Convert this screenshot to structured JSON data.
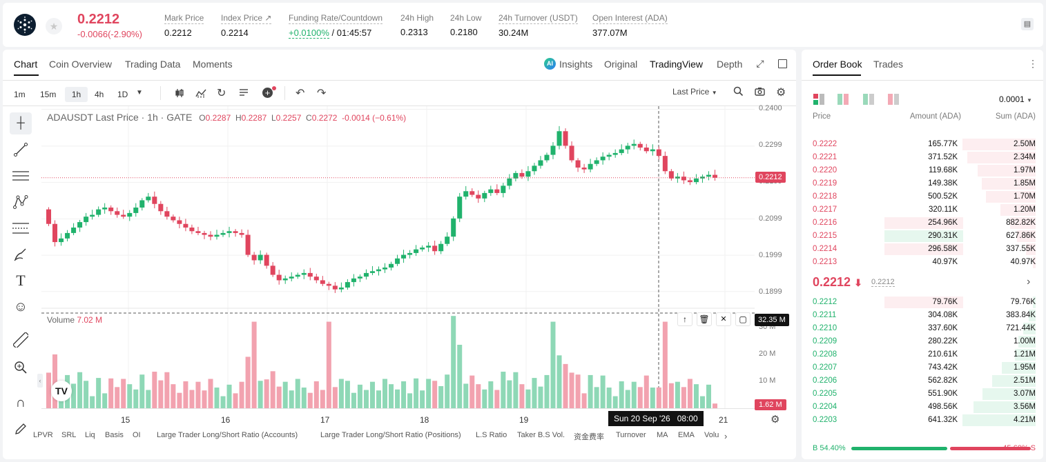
{
  "ticker": {
    "last_price": "0.2212",
    "change": "-0.0066(-2.90%)",
    "stats": [
      {
        "label": "Mark Price",
        "value": "0.2212"
      },
      {
        "label": "Index Price ↗",
        "value": "0.2214"
      },
      {
        "label": "Funding Rate/Countdown",
        "value_green": "+0.0100%",
        "value": " / 01:45:57"
      },
      {
        "label": "24h High",
        "value": "0.2313"
      },
      {
        "label": "24h Low",
        "value": "0.2180"
      },
      {
        "label": "24h Turnover (USDT)",
        "value": "30.24M"
      },
      {
        "label": "Open Interest (ADA)",
        "value": "377.07M"
      }
    ]
  },
  "chart_tabs": [
    "Chart",
    "Coin Overview",
    "Trading Data",
    "Moments"
  ],
  "view_tabs": {
    "insights": "Insights",
    "original": "Original",
    "tradingview": "TradingView",
    "depth": "Depth"
  },
  "intervals": [
    "1m",
    "15m",
    "1h",
    "4h",
    "1D"
  ],
  "selected_interval": "1h",
  "last_price_select": "Last Price",
  "legend": {
    "symbol": "ADAUSDT Last Price · 1h · GATE",
    "o_label": "O",
    "o": "0.2287",
    "h_label": "H",
    "h": "0.2287",
    "l_label": "L",
    "l": "0.2257",
    "c_label": "C",
    "c": "0.2272",
    "chg": "-0.0014 (−0.61%)"
  },
  "volume_legend": {
    "label": "Volume",
    "value": "7.02 M"
  },
  "price_axis": [
    "0.2400",
    "0.2299",
    "0.2199",
    "0.2099",
    "0.1999",
    "0.1899"
  ],
  "current_price_tag": "0.2212",
  "volume_axis": [
    "30 M",
    "20 M",
    "10 M"
  ],
  "volume_crosshair_tag": "32.35 M",
  "volume_last_tag": "1.62 M",
  "time_axis": [
    "15",
    "16",
    "17",
    "18",
    "19",
    "21"
  ],
  "crosshair_time": "Sun 20 Sep '26   08:00",
  "indicators": [
    "LPVR",
    "SRL",
    "Liq",
    "Basis",
    "OI",
    "Large Trader Long/Short Ratio (Accounts)",
    "Large Trader Long/Short Ratio (Positions)",
    "L.S Ratio",
    "Taker B.S Vol.",
    "资金费率",
    "Turnover",
    "MA",
    "EMA",
    "Volu"
  ],
  "chart_data": {
    "type": "candlestick",
    "title": "ADAUSDT Last Price · 1h · GATE",
    "ylim": [
      0.1855,
      0.2405
    ],
    "volume_ylim": [
      0,
      33
    ],
    "x_ticks": [
      "15",
      "16",
      "17",
      "18",
      "19",
      "21"
    ],
    "candle_closes_approx": [
      0.2085,
      0.2035,
      0.2045,
      0.206,
      0.2075,
      0.209,
      0.2105,
      0.211,
      0.2125,
      0.213,
      0.212,
      0.211,
      0.2105,
      0.2115,
      0.213,
      0.215,
      0.216,
      0.214,
      0.212,
      0.2105,
      0.2095,
      0.2085,
      0.2075,
      0.2065,
      0.206,
      0.2055,
      0.205,
      0.2055,
      0.206,
      0.2065,
      0.206,
      0.2055,
      0.2,
      0.1985,
      0.2,
      0.197,
      0.1945,
      0.193,
      0.1935,
      0.194,
      0.1945,
      0.195,
      0.194,
      0.193,
      0.192,
      0.1915,
      0.1905,
      0.191,
      0.1925,
      0.1935,
      0.194,
      0.195,
      0.1955,
      0.196,
      0.1965,
      0.1975,
      0.199,
      0.2,
      0.2005,
      0.2015,
      0.202,
      0.2025,
      0.201,
      0.203,
      0.205,
      0.21,
      0.216,
      0.2175,
      0.2165,
      0.2155,
      0.217,
      0.218,
      0.217,
      0.219,
      0.221,
      0.2225,
      0.2215,
      0.223,
      0.2245,
      0.226,
      0.2275,
      0.23,
      0.234,
      0.23,
      0.226,
      0.224,
      0.2235,
      0.225,
      0.226,
      0.227,
      0.2275,
      0.228,
      0.229,
      0.23,
      0.2305,
      0.2295,
      0.2285,
      0.229,
      0.2272,
      0.223,
      0.221,
      0.2215,
      0.2205,
      0.22,
      0.221,
      0.2215,
      0.222,
      0.2212
    ]
  },
  "order_book": {
    "tabs": [
      "Order Book",
      "Trades"
    ],
    "precision": "0.0001",
    "headers": {
      "price": "Price",
      "amount": "Amount (ADA)",
      "sum": "Sum (ADA)"
    },
    "asks": [
      {
        "price": "0.2222",
        "amount": "165.77K",
        "sum": "2.50M",
        "depth": 1.0,
        "hl": 0
      },
      {
        "price": "0.2221",
        "amount": "371.52K",
        "sum": "2.34M",
        "depth": 0.936,
        "hl": 0
      },
      {
        "price": "0.2220",
        "amount": "119.68K",
        "sum": "1.97M",
        "depth": 0.788,
        "hl": 0
      },
      {
        "price": "0.2219",
        "amount": "149.38K",
        "sum": "1.85M",
        "depth": 0.74,
        "hl": 0
      },
      {
        "price": "0.2218",
        "amount": "500.52K",
        "sum": "1.70M",
        "depth": 0.68,
        "hl": 0
      },
      {
        "price": "0.2217",
        "amount": "320.11K",
        "sum": "1.20M",
        "depth": 0.48,
        "hl": 0
      },
      {
        "price": "0.2216",
        "amount": "254.96K",
        "sum": "882.82K",
        "depth": 0.353,
        "hl": 1
      },
      {
        "price": "0.2215",
        "amount": "290.31K",
        "sum": "627.86K",
        "depth": 0.251,
        "hl": 2
      },
      {
        "price": "0.2214",
        "amount": "296.58K",
        "sum": "337.55K",
        "depth": 0.135,
        "hl": 1
      },
      {
        "price": "0.2213",
        "amount": "40.97K",
        "sum": "40.97K",
        "depth": 0.016,
        "hl": 0
      }
    ],
    "mid_price": "0.2212",
    "mid_mark": "0.2212",
    "bids": [
      {
        "price": "0.2212",
        "amount": "79.76K",
        "sum": "79.76K",
        "depth": 0.019,
        "hl": 1
      },
      {
        "price": "0.2211",
        "amount": "304.08K",
        "sum": "383.84K",
        "depth": 0.091,
        "hl": 0
      },
      {
        "price": "0.2210",
        "amount": "337.60K",
        "sum": "721.44K",
        "depth": 0.171,
        "hl": 0
      },
      {
        "price": "0.2209",
        "amount": "280.22K",
        "sum": "1.00M",
        "depth": 0.238,
        "hl": 0
      },
      {
        "price": "0.2208",
        "amount": "210.61K",
        "sum": "1.21M",
        "depth": 0.287,
        "hl": 0
      },
      {
        "price": "0.2207",
        "amount": "743.42K",
        "sum": "1.95M",
        "depth": 0.463,
        "hl": 0
      },
      {
        "price": "0.2206",
        "amount": "562.82K",
        "sum": "2.51M",
        "depth": 0.596,
        "hl": 0
      },
      {
        "price": "0.2205",
        "amount": "551.90K",
        "sum": "3.07M",
        "depth": 0.729,
        "hl": 0
      },
      {
        "price": "0.2204",
        "amount": "498.56K",
        "sum": "3.56M",
        "depth": 0.846,
        "hl": 0
      },
      {
        "price": "0.2203",
        "amount": "641.32K",
        "sum": "4.21M",
        "depth": 1.0,
        "hl": 0
      }
    ],
    "buy_ratio": "B 54.40%",
    "sell_ratio": "45.60% S",
    "buy_fraction": 0.544
  },
  "colors": {
    "up": "#20b26c",
    "down": "#e0455e",
    "up_vol": "#8ed8b6",
    "down_vol": "#f2a2af"
  }
}
